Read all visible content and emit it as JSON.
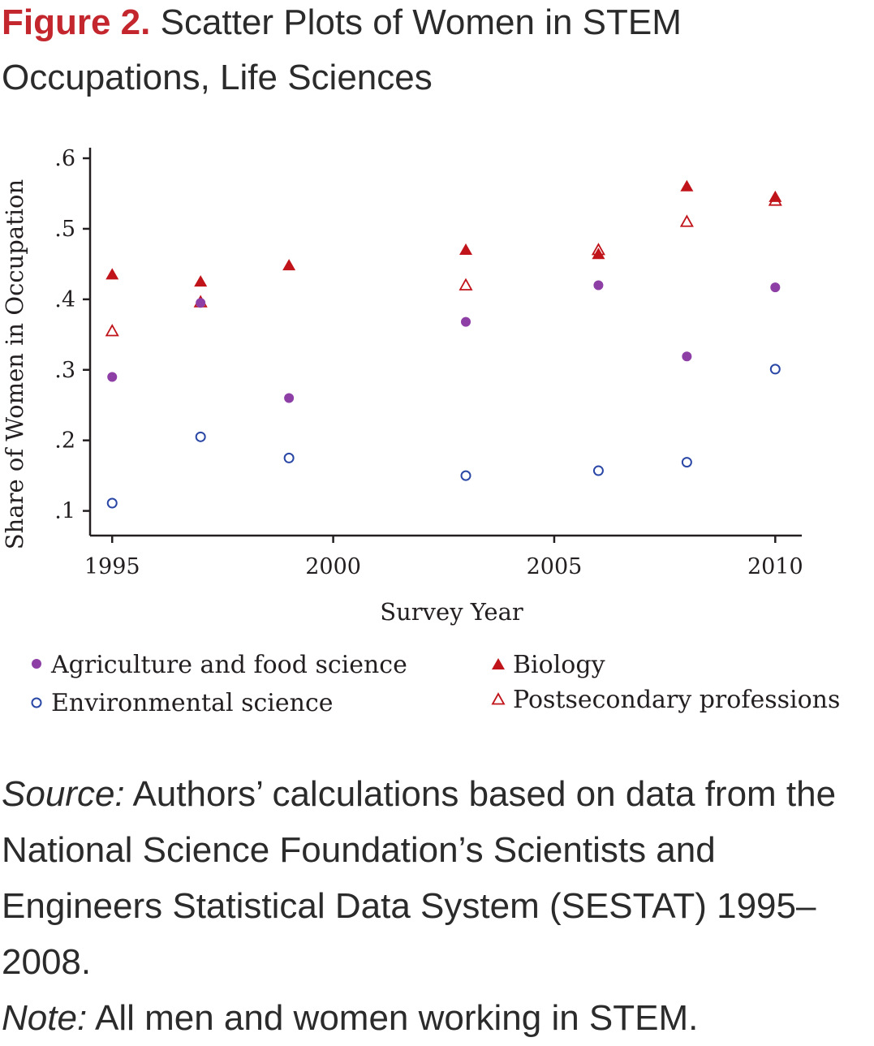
{
  "figure": {
    "label": "Figure 2.",
    "title": "Scatter Plots of Women in STEM Occupations, Life Sciences"
  },
  "notes": {
    "source_label": "Source:",
    "source_text": "Authors’ calculations based on data from the National Science Foundation’s Scientists and Engineers Statistical Data System (SESTAT) 1995–2008.",
    "note_label": "Note:",
    "note_text": "All men and women working in STEM."
  },
  "chart_data": {
    "type": "scatter",
    "title": "Scatter Plots of Women in STEM Occupations, Life Sciences",
    "xlabel": "Survey Year",
    "ylabel": "Share of Women in Occupation",
    "xlim": [
      1994.5,
      2010.6
    ],
    "ylim": [
      0.065,
      0.615
    ],
    "xticks": [
      1995,
      2000,
      2005,
      2010
    ],
    "xtick_labels": [
      "1995",
      "2000",
      "2005",
      "2010"
    ],
    "yticks": [
      0.1,
      0.2,
      0.3,
      0.4,
      0.5,
      0.6
    ],
    "ytick_labels": [
      ".1",
      ".2",
      ".3",
      ".4",
      ".5",
      ".6"
    ],
    "grid": false,
    "legend_position": "bottom",
    "series": [
      {
        "name": "Agriculture and food science",
        "marker": "filled-circle",
        "color": "#8e3fa6",
        "x": [
          1995,
          1997,
          1999,
          2003,
          2006,
          2008,
          2010
        ],
        "y": [
          0.29,
          0.395,
          0.26,
          0.368,
          0.42,
          0.319,
          0.417
        ]
      },
      {
        "name": "Biology",
        "marker": "filled-triangle",
        "color": "#c0141a",
        "x": [
          1995,
          1997,
          1999,
          2003,
          2006,
          2008,
          2010
        ],
        "y": [
          0.435,
          0.425,
          0.448,
          0.47,
          0.464,
          0.56,
          0.545
        ]
      },
      {
        "name": "Environmental science",
        "marker": "open-circle",
        "color": "#2a47a6",
        "x": [
          1995,
          1997,
          1999,
          2003,
          2006,
          2008,
          2010
        ],
        "y": [
          0.111,
          0.205,
          0.175,
          0.15,
          0.157,
          0.169,
          0.301
        ]
      },
      {
        "name": "Postsecondary professions",
        "marker": "open-triangle",
        "color": "#c0141a",
        "x": [
          1995,
          1997,
          2003,
          2006,
          2008,
          2010
        ],
        "y": [
          0.355,
          0.396,
          0.42,
          0.47,
          0.51,
          0.54
        ]
      }
    ]
  }
}
